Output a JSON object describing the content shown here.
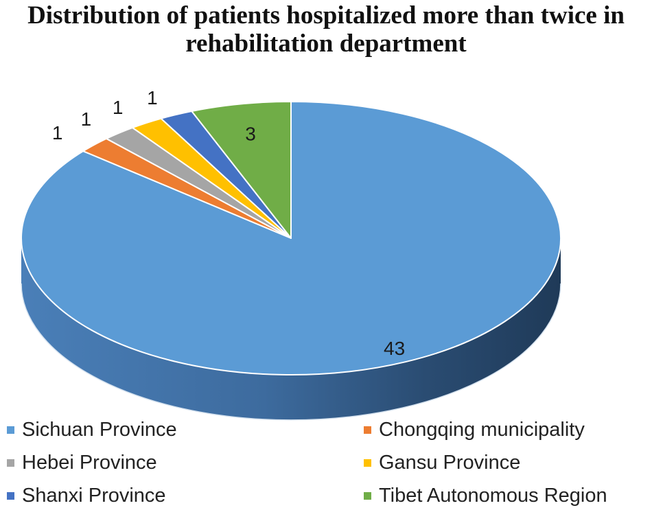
{
  "chart_data": {
    "type": "pie",
    "title": "Distribution of patients hospitalized more than twice in rehabilitation department",
    "title_lines": [
      "Distribution of patients hospitalized more than twice in",
      "rehabilitation department"
    ],
    "three_d": true,
    "legend_position": "bottom",
    "slices": [
      {
        "label": "Sichuan Province",
        "value": 43,
        "data_label": "43",
        "color": "#5b9bd5"
      },
      {
        "label": "Chongqing municipality",
        "value": 1,
        "data_label": "1",
        "color": "#ed7d31"
      },
      {
        "label": "Hebei Province",
        "value": 1,
        "data_label": "1",
        "color": "#a5a5a5"
      },
      {
        "label": "Gansu Province",
        "value": 1,
        "data_label": "1",
        "color": "#ffc000"
      },
      {
        "label": "Shanxi Province",
        "value": 1,
        "data_label": "1",
        "color": "#4472c4"
      },
      {
        "label": "Tibet Autonomous Region",
        "value": 3,
        "data_label": "3",
        "color": "#70ad47"
      }
    ]
  }
}
